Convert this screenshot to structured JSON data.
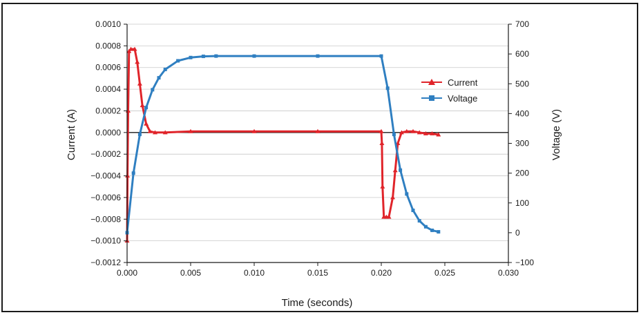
{
  "chart_data": {
    "type": "line",
    "title": "",
    "xlabel": "Time (seconds)",
    "ylabel_left": "Current (A)",
    "ylabel_right": "Voltage (V)",
    "xlim": [
      0,
      0.03
    ],
    "ylim_left": [
      -0.0012,
      0.001
    ],
    "ylim_right": [
      -100,
      700
    ],
    "x_ticks": [
      "0.000",
      "0.005",
      "0.010",
      "0.015",
      "0.020",
      "0.025",
      "0.030"
    ],
    "y_left_ticks": [
      "0.0010",
      "0.0008",
      "0.0006",
      "0.0004",
      "0.0002",
      "0.0000",
      "−0.0002",
      "−0.0004",
      "−0.0006",
      "−0.0008",
      "−0.0010",
      "−0.0012"
    ],
    "y_right_ticks": [
      "700",
      "600",
      "500",
      "400",
      "300",
      "200",
      "100",
      "0",
      "−100"
    ],
    "grid": true,
    "legend_position": "upper-right-inside",
    "series": [
      {
        "name": "Current",
        "axis": "left",
        "color": "#e0242a",
        "marker": "triangle",
        "x": [
          0.0,
          3e-05,
          8e-05,
          0.00015,
          0.0003,
          0.0006,
          0.0008,
          0.001,
          0.0012,
          0.0015,
          0.0018,
          0.0022,
          0.003,
          0.005,
          0.01,
          0.015,
          0.02,
          0.02005,
          0.0201,
          0.0202,
          0.0204,
          0.0206,
          0.0209,
          0.0211,
          0.0213,
          0.0216,
          0.022,
          0.0225,
          0.023,
          0.0235,
          0.024,
          0.0245
        ],
        "y": [
          -0.001,
          -0.0004,
          0.0002,
          0.00075,
          0.00077,
          0.00077,
          0.00065,
          0.00045,
          0.00025,
          8e-05,
          1e-05,
          0.0,
          0.0,
          1e-05,
          1e-05,
          1e-05,
          1e-05,
          -0.0001,
          -0.0005,
          -0.00078,
          -0.00078,
          -0.00078,
          -0.0006,
          -0.00035,
          -0.0001,
          0.0,
          1e-05,
          1e-05,
          0.0,
          -1e-05,
          -1e-05,
          -2e-05
        ]
      },
      {
        "name": "Voltage",
        "axis": "right",
        "color": "#2f7fc1",
        "marker": "square",
        "x": [
          0.0,
          0.0005,
          0.001,
          0.0015,
          0.002,
          0.0025,
          0.003,
          0.004,
          0.005,
          0.006,
          0.007,
          0.01,
          0.015,
          0.02,
          0.0205,
          0.021,
          0.0215,
          0.022,
          0.0225,
          0.023,
          0.0235,
          0.024,
          0.0245
        ],
        "y": [
          0,
          200,
          330,
          420,
          480,
          520,
          548,
          577,
          588,
          592,
          593,
          593,
          593,
          593,
          485,
          330,
          210,
          130,
          75,
          40,
          20,
          8,
          3
        ]
      }
    ]
  }
}
